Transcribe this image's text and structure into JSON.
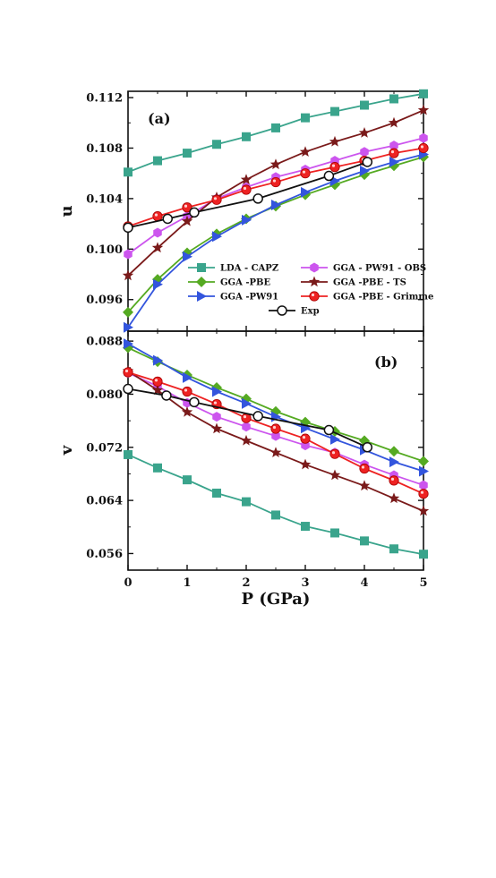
{
  "chart_data": {
    "type": "line",
    "x": [
      0,
      0.5,
      1,
      1.5,
      2,
      2.5,
      3,
      3.5,
      4,
      4.5,
      5
    ],
    "xlabel": "P (GPa)",
    "xlim": [
      0,
      5
    ],
    "xticks": [
      "0",
      "1",
      "2",
      "3",
      "4",
      "5"
    ],
    "legend": {
      "placement": "bottom-right of panel (a)",
      "columns": 2
    },
    "panels": [
      {
        "label": "(a)",
        "ylabel": "u",
        "ylim": [
          0.0935,
          0.1125
        ],
        "yticks": [
          "0.096",
          "0.100",
          "0.104",
          "0.108",
          "0.112"
        ],
        "series": [
          {
            "name": "LDA - CAPZ",
            "color": "#3aa48c",
            "marker": "square",
            "values": [
              0.1061,
              0.107,
              0.1076,
              0.1083,
              0.1089,
              0.1096,
              0.1104,
              0.1109,
              0.1114,
              0.1119,
              0.1123
            ]
          },
          {
            "name": "GGA - PW91 - OBS",
            "color": "#cc55ee",
            "marker": "hexagon",
            "values": [
              0.0996,
              0.1013,
              0.1026,
              0.104,
              0.1049,
              0.1057,
              0.1063,
              0.107,
              0.1077,
              0.1082,
              0.1088
            ]
          },
          {
            "name": "GGA -PBE",
            "color": "#55aa22",
            "marker": "diamond",
            "values": [
              0.095,
              0.0976,
              0.0997,
              0.1012,
              0.1024,
              0.1034,
              0.1043,
              0.1051,
              0.1059,
              0.1066,
              0.1073
            ]
          },
          {
            "name": "GGA -PBE - TS",
            "color": "#7a1a1a",
            "marker": "star",
            "values": [
              0.0979,
              0.1001,
              0.1022,
              0.1041,
              0.1055,
              0.1067,
              0.1077,
              0.1085,
              0.1092,
              0.11,
              0.111
            ]
          },
          {
            "name": "GGA -PW91",
            "color": "#3355dd",
            "marker": "triangle-right",
            "values": [
              0.0938,
              0.0972,
              0.0994,
              0.101,
              0.1023,
              0.1035,
              0.1045,
              0.1054,
              0.1062,
              0.1069,
              0.1075
            ]
          },
          {
            "name": "GGA -PBE - Grimme",
            "color": "#ee2222",
            "marker": "circle",
            "values": [
              0.1018,
              0.1026,
              0.1033,
              0.1039,
              0.1047,
              0.1053,
              0.106,
              0.1065,
              0.107,
              0.1076,
              0.108
            ]
          },
          {
            "name": "Exp",
            "color": "#111111",
            "marker": "open-circle",
            "x": [
              0,
              0.67,
              1.12,
              2.2,
              3.4,
              4.05
            ],
            "values": [
              0.1017,
              0.1024,
              0.1029,
              0.104,
              0.1058,
              0.1069
            ]
          }
        ]
      },
      {
        "label": "(b)",
        "ylabel": "v",
        "ylim": [
          0.0535,
          0.0895
        ],
        "yticks": [
          "0.056",
          "0.064",
          "0.072",
          "0.080",
          "0.088"
        ],
        "series": [
          {
            "name": "LDA - CAPZ",
            "color": "#3aa48c",
            "marker": "square",
            "values": [
              0.0709,
              0.0689,
              0.0671,
              0.0651,
              0.0638,
              0.0618,
              0.0601,
              0.0591,
              0.0579,
              0.0567,
              0.0559
            ]
          },
          {
            "name": "GGA - PW91 - OBS",
            "color": "#cc55ee",
            "marker": "hexagon",
            "values": [
              0.0832,
              0.0812,
              0.0787,
              0.0766,
              0.0751,
              0.0737,
              0.0723,
              0.0712,
              0.0694,
              0.0678,
              0.0663
            ]
          },
          {
            "name": "GGA -PBE",
            "color": "#55aa22",
            "marker": "diamond",
            "values": [
              0.087,
              0.0849,
              0.0829,
              0.081,
              0.0793,
              0.0774,
              0.0758,
              0.0744,
              0.073,
              0.0714,
              0.0699
            ]
          },
          {
            "name": "GGA -PBE - TS",
            "color": "#7a1a1a",
            "marker": "star",
            "values": [
              0.0835,
              0.0806,
              0.0773,
              0.0748,
              0.073,
              0.0712,
              0.0694,
              0.0678,
              0.0662,
              0.0643,
              0.0624
            ]
          },
          {
            "name": "GGA -PW91",
            "color": "#3355dd",
            "marker": "triangle-right",
            "values": [
              0.0876,
              0.0851,
              0.0825,
              0.0804,
              0.0786,
              0.0766,
              0.0749,
              0.0732,
              0.0716,
              0.0698,
              0.0684
            ]
          },
          {
            "name": "GGA -PBE - Grimme",
            "color": "#ee2222",
            "marker": "circle",
            "values": [
              0.0833,
              0.0819,
              0.0804,
              0.0785,
              0.0764,
              0.0748,
              0.0733,
              0.071,
              0.0688,
              0.067,
              0.065
            ]
          },
          {
            "name": "Exp",
            "color": "#111111",
            "marker": "open-circle",
            "x": [
              0,
              0.65,
              1.12,
              2.2,
              3.4,
              4.05
            ],
            "values": [
              0.0808,
              0.0798,
              0.0788,
              0.0767,
              0.0746,
              0.072
            ]
          }
        ]
      }
    ]
  }
}
